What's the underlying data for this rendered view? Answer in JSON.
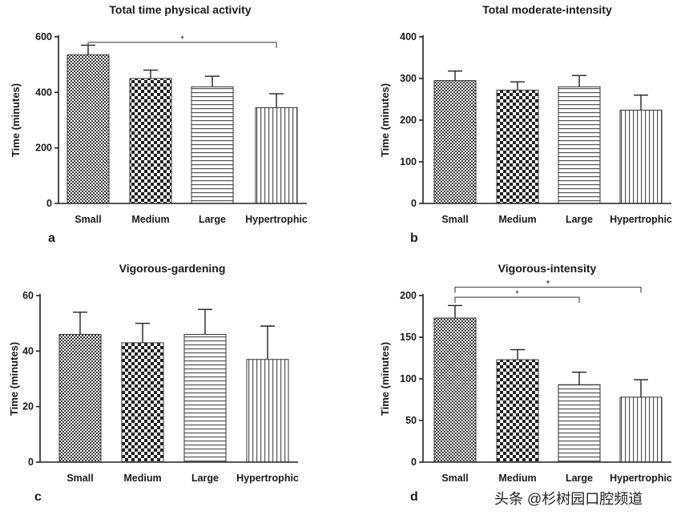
{
  "chart_data": [
    {
      "type": "bar",
      "panel_label": "a",
      "title": "Total time physical activity",
      "ylabel": "Time (minutes)",
      "xlabel": "",
      "ylim": [
        0,
        600
      ],
      "yticks": [
        "0",
        "200",
        "400",
        "600"
      ],
      "categories": [
        "Small",
        "Medium",
        "Large",
        "Hypertrophic"
      ],
      "values": [
        535,
        450,
        420,
        345
      ],
      "errors": [
        35,
        30,
        38,
        50
      ],
      "patterns": [
        "fine-check",
        "checker",
        "horizontal",
        "vertical"
      ],
      "significance": [
        {
          "from": 0,
          "to": 3,
          "y": 580,
          "label": "*"
        }
      ]
    },
    {
      "type": "bar",
      "panel_label": "b",
      "title": "Total moderate-intensity",
      "ylabel": "Time (minutes)",
      "xlabel": "",
      "ylim": [
        0,
        400
      ],
      "yticks": [
        "0",
        "100",
        "200",
        "300",
        "400"
      ],
      "categories": [
        "Small",
        "Medium",
        "Large",
        "Hypertrophic"
      ],
      "values": [
        295,
        272,
        280,
        224
      ],
      "errors": [
        23,
        20,
        27,
        36
      ],
      "patterns": [
        "fine-check",
        "checker",
        "horizontal",
        "vertical"
      ],
      "significance": []
    },
    {
      "type": "bar",
      "panel_label": "c",
      "title": "Vigorous-gardening",
      "ylabel": "Time (minutes)",
      "xlabel": "",
      "ylim": [
        0,
        60
      ],
      "yticks": [
        "0",
        "20",
        "40",
        "60"
      ],
      "categories": [
        "Small",
        "Medium",
        "Large",
        "Hypertrophic"
      ],
      "values": [
        46,
        43,
        46,
        37
      ],
      "errors": [
        8,
        7,
        9,
        12
      ],
      "patterns": [
        "fine-check",
        "checker",
        "horizontal",
        "vertical"
      ],
      "significance": []
    },
    {
      "type": "bar",
      "panel_label": "d",
      "title": "Vigorous-intensity",
      "ylabel": "Time (minutes)",
      "xlabel": "",
      "ylim": [
        0,
        200
      ],
      "yticks": [
        "0",
        "50",
        "100",
        "150",
        "200"
      ],
      "categories": [
        "Small",
        "Medium",
        "Large",
        "Hypertrophic"
      ],
      "values": [
        173,
        123,
        93,
        78
      ],
      "errors": [
        15,
        12,
        15,
        21
      ],
      "patterns": [
        "fine-check",
        "checker",
        "horizontal",
        "vertical"
      ],
      "significance": [
        {
          "from": 0,
          "to": 2,
          "y": 198,
          "label": "*"
        },
        {
          "from": 0,
          "to": 3,
          "y": 210,
          "label": "*"
        }
      ]
    }
  ],
  "watermark": "头条 @杉树园口腔频道"
}
